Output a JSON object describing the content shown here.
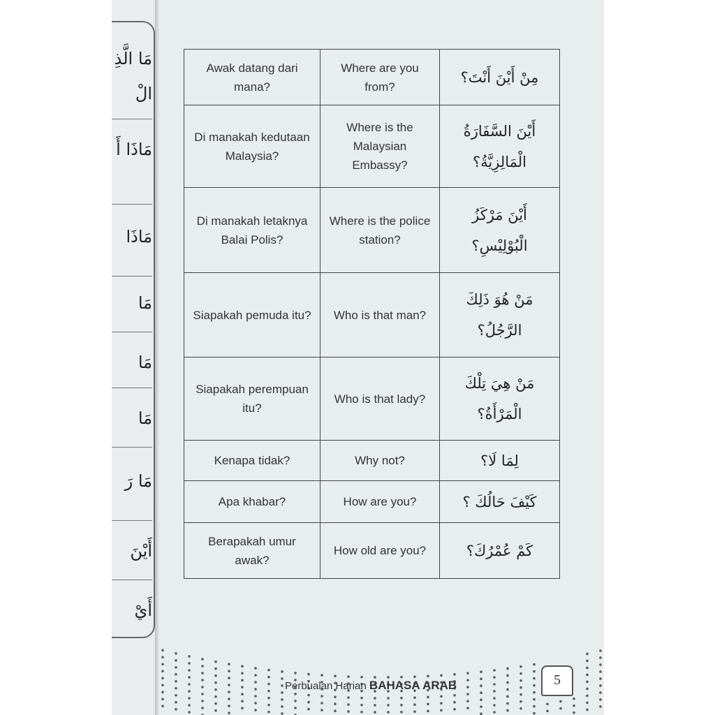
{
  "left_page": {
    "fragments": [
      "مَا الَّذِ",
      "الْ",
      "مَاذَا أَ",
      "مَاذَا",
      "مَا",
      "مَا",
      "مَا",
      "مَا رَ",
      "أَيْنَ",
      "أَيْ"
    ]
  },
  "phrase_table": {
    "rows": [
      {
        "malay": "Awak datang dari mana?",
        "english": "Where are you from?",
        "arabic": "مِنْ أَيْنَ أَنْتَ؟"
      },
      {
        "malay": "Di manakah kedutaan Malaysia?",
        "english": "Where is the Malaysian Embassy?",
        "arabic": "أَيْنَ السَّفَارَةُ الْمَالِزِيَّةُ؟"
      },
      {
        "malay": "Di manakah letaknya Balai Polis?",
        "english": "Where is the police station?",
        "arabic": "أَيْنَ مَرْكَزُ الْبُوْلِيْسِ؟"
      },
      {
        "malay": "Siapakah pemuda itu?",
        "english": "Who is that man?",
        "arabic": "مَنْ هُوَ ذَلِكَ الرَّجُلُ؟"
      },
      {
        "malay": "Siapakah perempuan itu?",
        "english": "Who is that lady?",
        "arabic": "مَنْ هِيَ تِلْكَ الْمَرْأَةُ؟"
      },
      {
        "malay": "Kenapa tidak?",
        "english": "Why not?",
        "arabic": "لِمَا لَا؟"
      },
      {
        "malay": "Apa khabar?",
        "english": "How are you?",
        "arabic": "كَيْفَ حَالُكَ ؟"
      },
      {
        "malay": "Berapakah umur awak?",
        "english": "How old are you?",
        "arabic": "كَمْ عُمْرُكَ؟"
      }
    ]
  },
  "footer": {
    "series_prefix": "Perbualan Harian",
    "series_title": "BAHASA ARAB",
    "page_number": "5"
  },
  "colors": {
    "page": "#e8eded",
    "ink": "#333333",
    "dots": "#555b5e"
  }
}
